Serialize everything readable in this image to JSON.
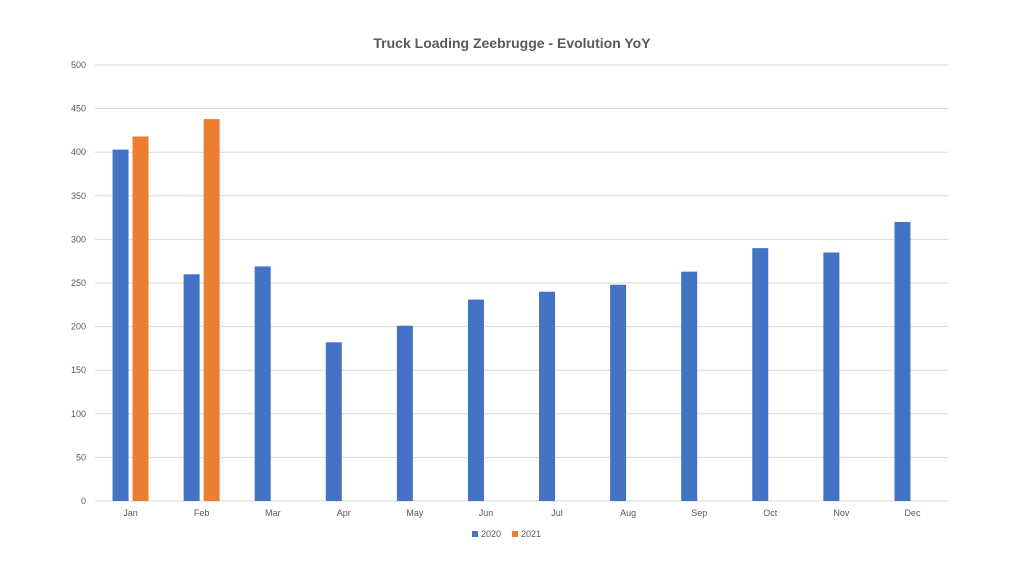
{
  "chart_data": {
    "type": "bar",
    "title": "Truck Loading Zeebrugge - Evolution YoY",
    "xlabel": "",
    "ylabel": "",
    "ylim": [
      0,
      500
    ],
    "yticks": [
      0,
      50,
      100,
      150,
      200,
      250,
      300,
      350,
      400,
      450,
      500
    ],
    "categories": [
      "Jan",
      "Feb",
      "Mar",
      "Apr",
      "May",
      "Jun",
      "Jul",
      "Aug",
      "Sep",
      "Oct",
      "Nov",
      "Dec"
    ],
    "series": [
      {
        "name": "2020",
        "color": "#4472C4",
        "values": [
          403,
          260,
          269,
          182,
          201,
          231,
          240,
          248,
          263,
          290,
          285,
          320
        ]
      },
      {
        "name": "2021",
        "color": "#ED7D31",
        "values": [
          418,
          438,
          null,
          null,
          null,
          null,
          null,
          null,
          null,
          null,
          null,
          null
        ]
      }
    ],
    "grid": true,
    "legend_position": "bottom"
  }
}
